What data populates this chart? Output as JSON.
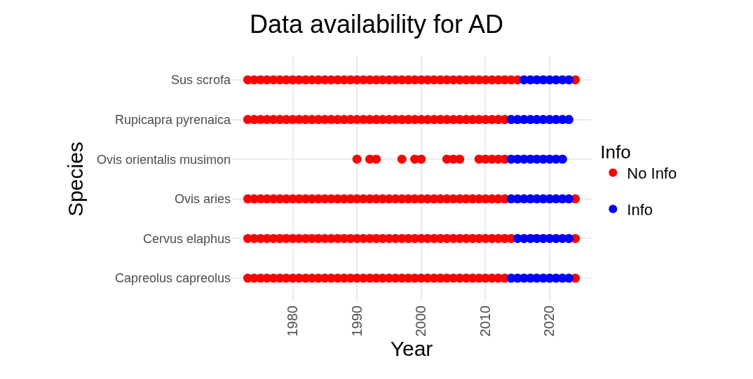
{
  "chart_data": {
    "type": "scatter",
    "title": "Data availability for AD",
    "xlabel": "Year",
    "ylabel": "Species",
    "legend_title": "Info",
    "orientation": "horizontal",
    "categories": [
      "Sus scrofa",
      "Rupicapra pyrenaica",
      "Ovis orientalis musimon",
      "Ovis aries",
      "Cervus elaphus",
      "Capreolus capreolus"
    ],
    "xlim": [
      1970.45,
      2026.55
    ],
    "xticks": [
      1980,
      1990,
      2000,
      2010,
      2020
    ],
    "grid": true,
    "legend": "right",
    "marker": "circle",
    "series": [
      {
        "name": "No Info",
        "color": "#ff0000",
        "values": [
          1973,
          1973,
          1990,
          1973,
          1973,
          1973
        ]
      },
      {
        "color": "#ff0000",
        "values": [
          1974,
          1974,
          1992,
          1974,
          1974,
          1974
        ]
      },
      {
        "color": "#ff0000",
        "values": [
          1975,
          1975,
          1993,
          1975,
          1975,
          1975
        ]
      },
      {
        "color": "#ff0000",
        "values": [
          1976,
          1976,
          1997,
          1976,
          1976,
          1976
        ]
      },
      {
        "color": "#ff0000",
        "values": [
          1977,
          1977,
          1999,
          1977,
          1977,
          1977
        ]
      },
      {
        "color": "#ff0000",
        "values": [
          1978,
          1978,
          2000,
          1978,
          1978,
          1978
        ]
      },
      {
        "color": "#ff0000",
        "values": [
          1979,
          1979,
          2004,
          1979,
          1979,
          1979
        ]
      },
      {
        "color": "#ff0000",
        "values": [
          1980,
          1980,
          2005,
          1980,
          1980,
          1980
        ]
      },
      {
        "color": "#ff0000",
        "values": [
          1981,
          1981,
          2006,
          1981,
          1981,
          1981
        ]
      },
      {
        "color": "#ff0000",
        "values": [
          1982,
          1982,
          2009,
          1982,
          1982,
          1982
        ]
      },
      {
        "color": "#ff0000",
        "values": [
          1983,
          1983,
          2010,
          1983,
          1983,
          1983
        ]
      },
      {
        "color": "#ff0000",
        "values": [
          1984,
          1984,
          2011,
          1984,
          1984,
          1984
        ]
      },
      {
        "color": "#ff0000",
        "values": [
          1985,
          1985,
          2012,
          1985,
          1985,
          1985
        ]
      },
      {
        "color": "#ff0000",
        "values": [
          1986,
          1986,
          2013,
          1986,
          1986,
          1986
        ]
      },
      {
        "color": "#ff0000",
        "values": [
          1987,
          1987,
          null,
          1987,
          1987,
          1987
        ]
      },
      {
        "color": "#ff0000",
        "values": [
          1988,
          1988,
          null,
          1988,
          1988,
          1988
        ]
      },
      {
        "color": "#ff0000",
        "values": [
          1989,
          1989,
          null,
          1989,
          1989,
          1989
        ]
      },
      {
        "color": "#ff0000",
        "values": [
          1990,
          1990,
          null,
          1990,
          1990,
          1990
        ]
      },
      {
        "color": "#ff0000",
        "values": [
          1991,
          1991,
          null,
          1991,
          1991,
          1991
        ]
      },
      {
        "color": "#ff0000",
        "values": [
          1992,
          1992,
          null,
          1992,
          1992,
          1992
        ]
      },
      {
        "color": "#ff0000",
        "values": [
          1993,
          1993,
          null,
          1993,
          1993,
          1993
        ]
      },
      {
        "color": "#ff0000",
        "values": [
          1994,
          1994,
          null,
          1994,
          1994,
          1994
        ]
      },
      {
        "color": "#ff0000",
        "values": [
          1995,
          1995,
          null,
          1995,
          1995,
          1995
        ]
      },
      {
        "color": "#ff0000",
        "values": [
          1996,
          1996,
          null,
          1996,
          1996,
          1996
        ]
      },
      {
        "color": "#ff0000",
        "values": [
          1997,
          1997,
          null,
          1997,
          1997,
          1997
        ]
      },
      {
        "color": "#ff0000",
        "values": [
          1998,
          1998,
          null,
          1998,
          1998,
          1998
        ]
      },
      {
        "color": "#ff0000",
        "values": [
          1999,
          1999,
          null,
          1999,
          1999,
          1999
        ]
      },
      {
        "color": "#ff0000",
        "values": [
          2000,
          2000,
          null,
          2000,
          2000,
          2000
        ]
      },
      {
        "color": "#ff0000",
        "values": [
          2001,
          2001,
          null,
          2001,
          2001,
          2001
        ]
      },
      {
        "color": "#ff0000",
        "values": [
          2002,
          2002,
          null,
          2002,
          2002,
          2002
        ]
      },
      {
        "color": "#ff0000",
        "values": [
          2003,
          2003,
          null,
          2003,
          2003,
          2003
        ]
      },
      {
        "color": "#ff0000",
        "values": [
          2004,
          2004,
          null,
          2004,
          2004,
          2004
        ]
      },
      {
        "color": "#ff0000",
        "values": [
          2005,
          2005,
          null,
          2005,
          2005,
          2005
        ]
      },
      {
        "color": "#ff0000",
        "values": [
          2006,
          2006,
          null,
          2006,
          2006,
          2006
        ]
      },
      {
        "color": "#ff0000",
        "values": [
          2007,
          2007,
          null,
          2007,
          2007,
          2007
        ]
      },
      {
        "color": "#ff0000",
        "values": [
          2008,
          2008,
          null,
          2008,
          2008,
          2008
        ]
      },
      {
        "color": "#ff0000",
        "values": [
          2009,
          2009,
          null,
          2009,
          2009,
          2009
        ]
      },
      {
        "color": "#ff0000",
        "values": [
          2010,
          2010,
          null,
          2010,
          2010,
          2010
        ]
      },
      {
        "color": "#ff0000",
        "values": [
          2011,
          2011,
          null,
          2011,
          2011,
          2011
        ]
      },
      {
        "color": "#ff0000",
        "values": [
          2012,
          2012,
          null,
          2012,
          2012,
          2012
        ]
      },
      {
        "color": "#ff0000",
        "values": [
          2013,
          2013,
          null,
          2013,
          2013,
          2013
        ]
      },
      {
        "color": "#ff0000",
        "values": [
          2014,
          null,
          null,
          2024,
          2014,
          2024
        ]
      },
      {
        "color": "#ff0000",
        "values": [
          2015,
          null,
          null,
          null,
          2024,
          null
        ]
      },
      {
        "color": "#ff0000",
        "values": [
          2024,
          null,
          null,
          null,
          null,
          null
        ]
      },
      {
        "name": "Info",
        "color": "#0000ff",
        "values": [
          2016,
          2014,
          2014,
          2014,
          2015,
          2014
        ]
      },
      {
        "color": "#0000ff",
        "values": [
          2017,
          2015,
          2015,
          2015,
          2016,
          2015
        ]
      },
      {
        "color": "#0000ff",
        "values": [
          2018,
          2016,
          2016,
          2016,
          2017,
          2016
        ]
      },
      {
        "color": "#0000ff",
        "values": [
          2019,
          2017,
          2017,
          2017,
          2018,
          2017
        ]
      },
      {
        "color": "#0000ff",
        "values": [
          2020,
          2018,
          2018,
          2018,
          2019,
          2018
        ]
      },
      {
        "color": "#0000ff",
        "values": [
          2021,
          2019,
          2019,
          2019,
          2020,
          2019
        ]
      },
      {
        "color": "#0000ff",
        "values": [
          2022,
          2020,
          2020,
          2020,
          2021,
          2020
        ]
      },
      {
        "color": "#0000ff",
        "values": [
          2023,
          2021,
          2021,
          2021,
          2022,
          2021
        ]
      },
      {
        "color": "#0000ff",
        "values": [
          null,
          2022,
          2022,
          2022,
          2023,
          2022
        ]
      },
      {
        "color": "#0000ff",
        "values": [
          null,
          2023,
          null,
          2023,
          null,
          2023
        ]
      }
    ]
  }
}
